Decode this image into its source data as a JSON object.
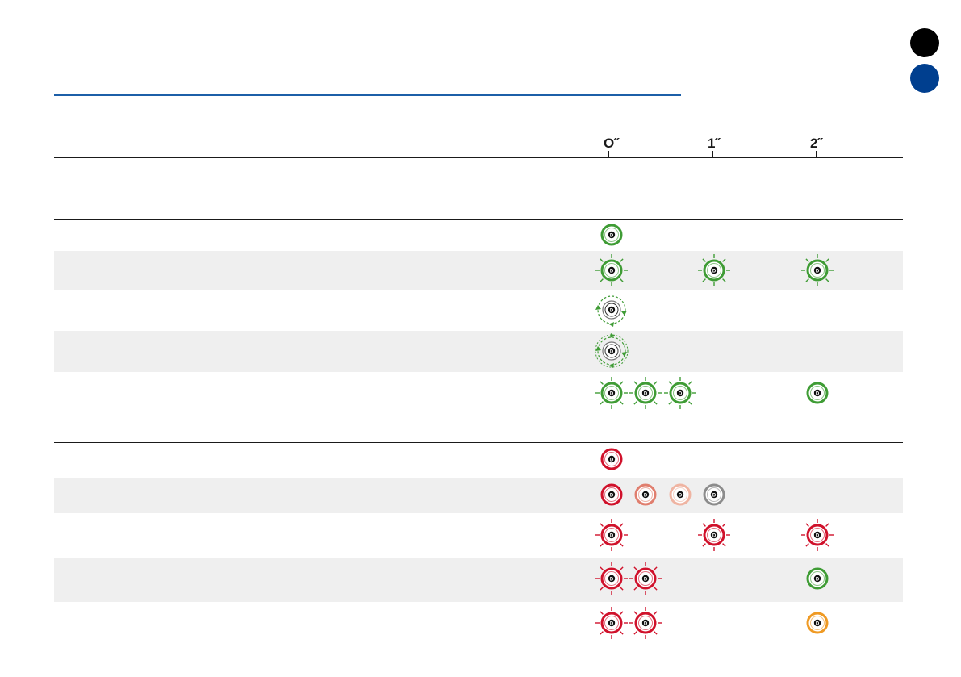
{
  "table": {
    "time_headers": [
      "O˝",
      "1˝",
      "2˝"
    ]
  },
  "colors": {
    "green": "#3f9c35",
    "red": "#d0112b",
    "salmon": "#e07e6e",
    "peach": "#efb4a2",
    "grey": "#8c8c8c",
    "orange": "#ef9a24",
    "section_marker_black": "#000000",
    "section_marker_blue": "#003f8f",
    "title_rule": "#1c5fa8"
  },
  "rows": [
    {
      "id": "green-steady",
      "icons": [
        "led-ring-green-icon"
      ]
    },
    {
      "id": "green-blink-each-second",
      "icons": [
        "led-ring-green-flashing-icon",
        "led-ring-green-flashing-icon",
        "led-ring-green-flashing-icon"
      ]
    },
    {
      "id": "green-rotating",
      "icons": [
        "led-ring-green-rotating-icon"
      ]
    },
    {
      "id": "green-rotating-both-directions",
      "icons": [
        "led-ring-green-rotating-both-icon"
      ]
    },
    {
      "id": "green-triple-flash-then-steady",
      "icons": [
        "led-ring-green-flashing-icon",
        "led-ring-green-flashing-icon",
        "led-ring-green-flashing-icon",
        "led-ring-green-icon"
      ]
    },
    {
      "id": "red-steady",
      "icons": [
        "led-ring-red-icon"
      ]
    },
    {
      "id": "red-fading",
      "icons": [
        "led-ring-red-icon",
        "led-ring-salmon-icon",
        "led-ring-peach-icon",
        "led-ring-grey-icon"
      ]
    },
    {
      "id": "red-blink-each-second",
      "icons": [
        "led-ring-red-flashing-icon",
        "led-ring-red-flashing-icon",
        "led-ring-red-flashing-icon"
      ]
    },
    {
      "id": "red-double-flash-then-green",
      "icons": [
        "led-ring-red-flashing-icon",
        "led-ring-red-flashing-icon",
        "led-ring-green-icon"
      ]
    },
    {
      "id": "red-double-flash-then-orange",
      "icons": [
        "led-ring-red-flashing-icon",
        "led-ring-red-flashing-icon",
        "led-ring-orange-icon"
      ]
    }
  ]
}
